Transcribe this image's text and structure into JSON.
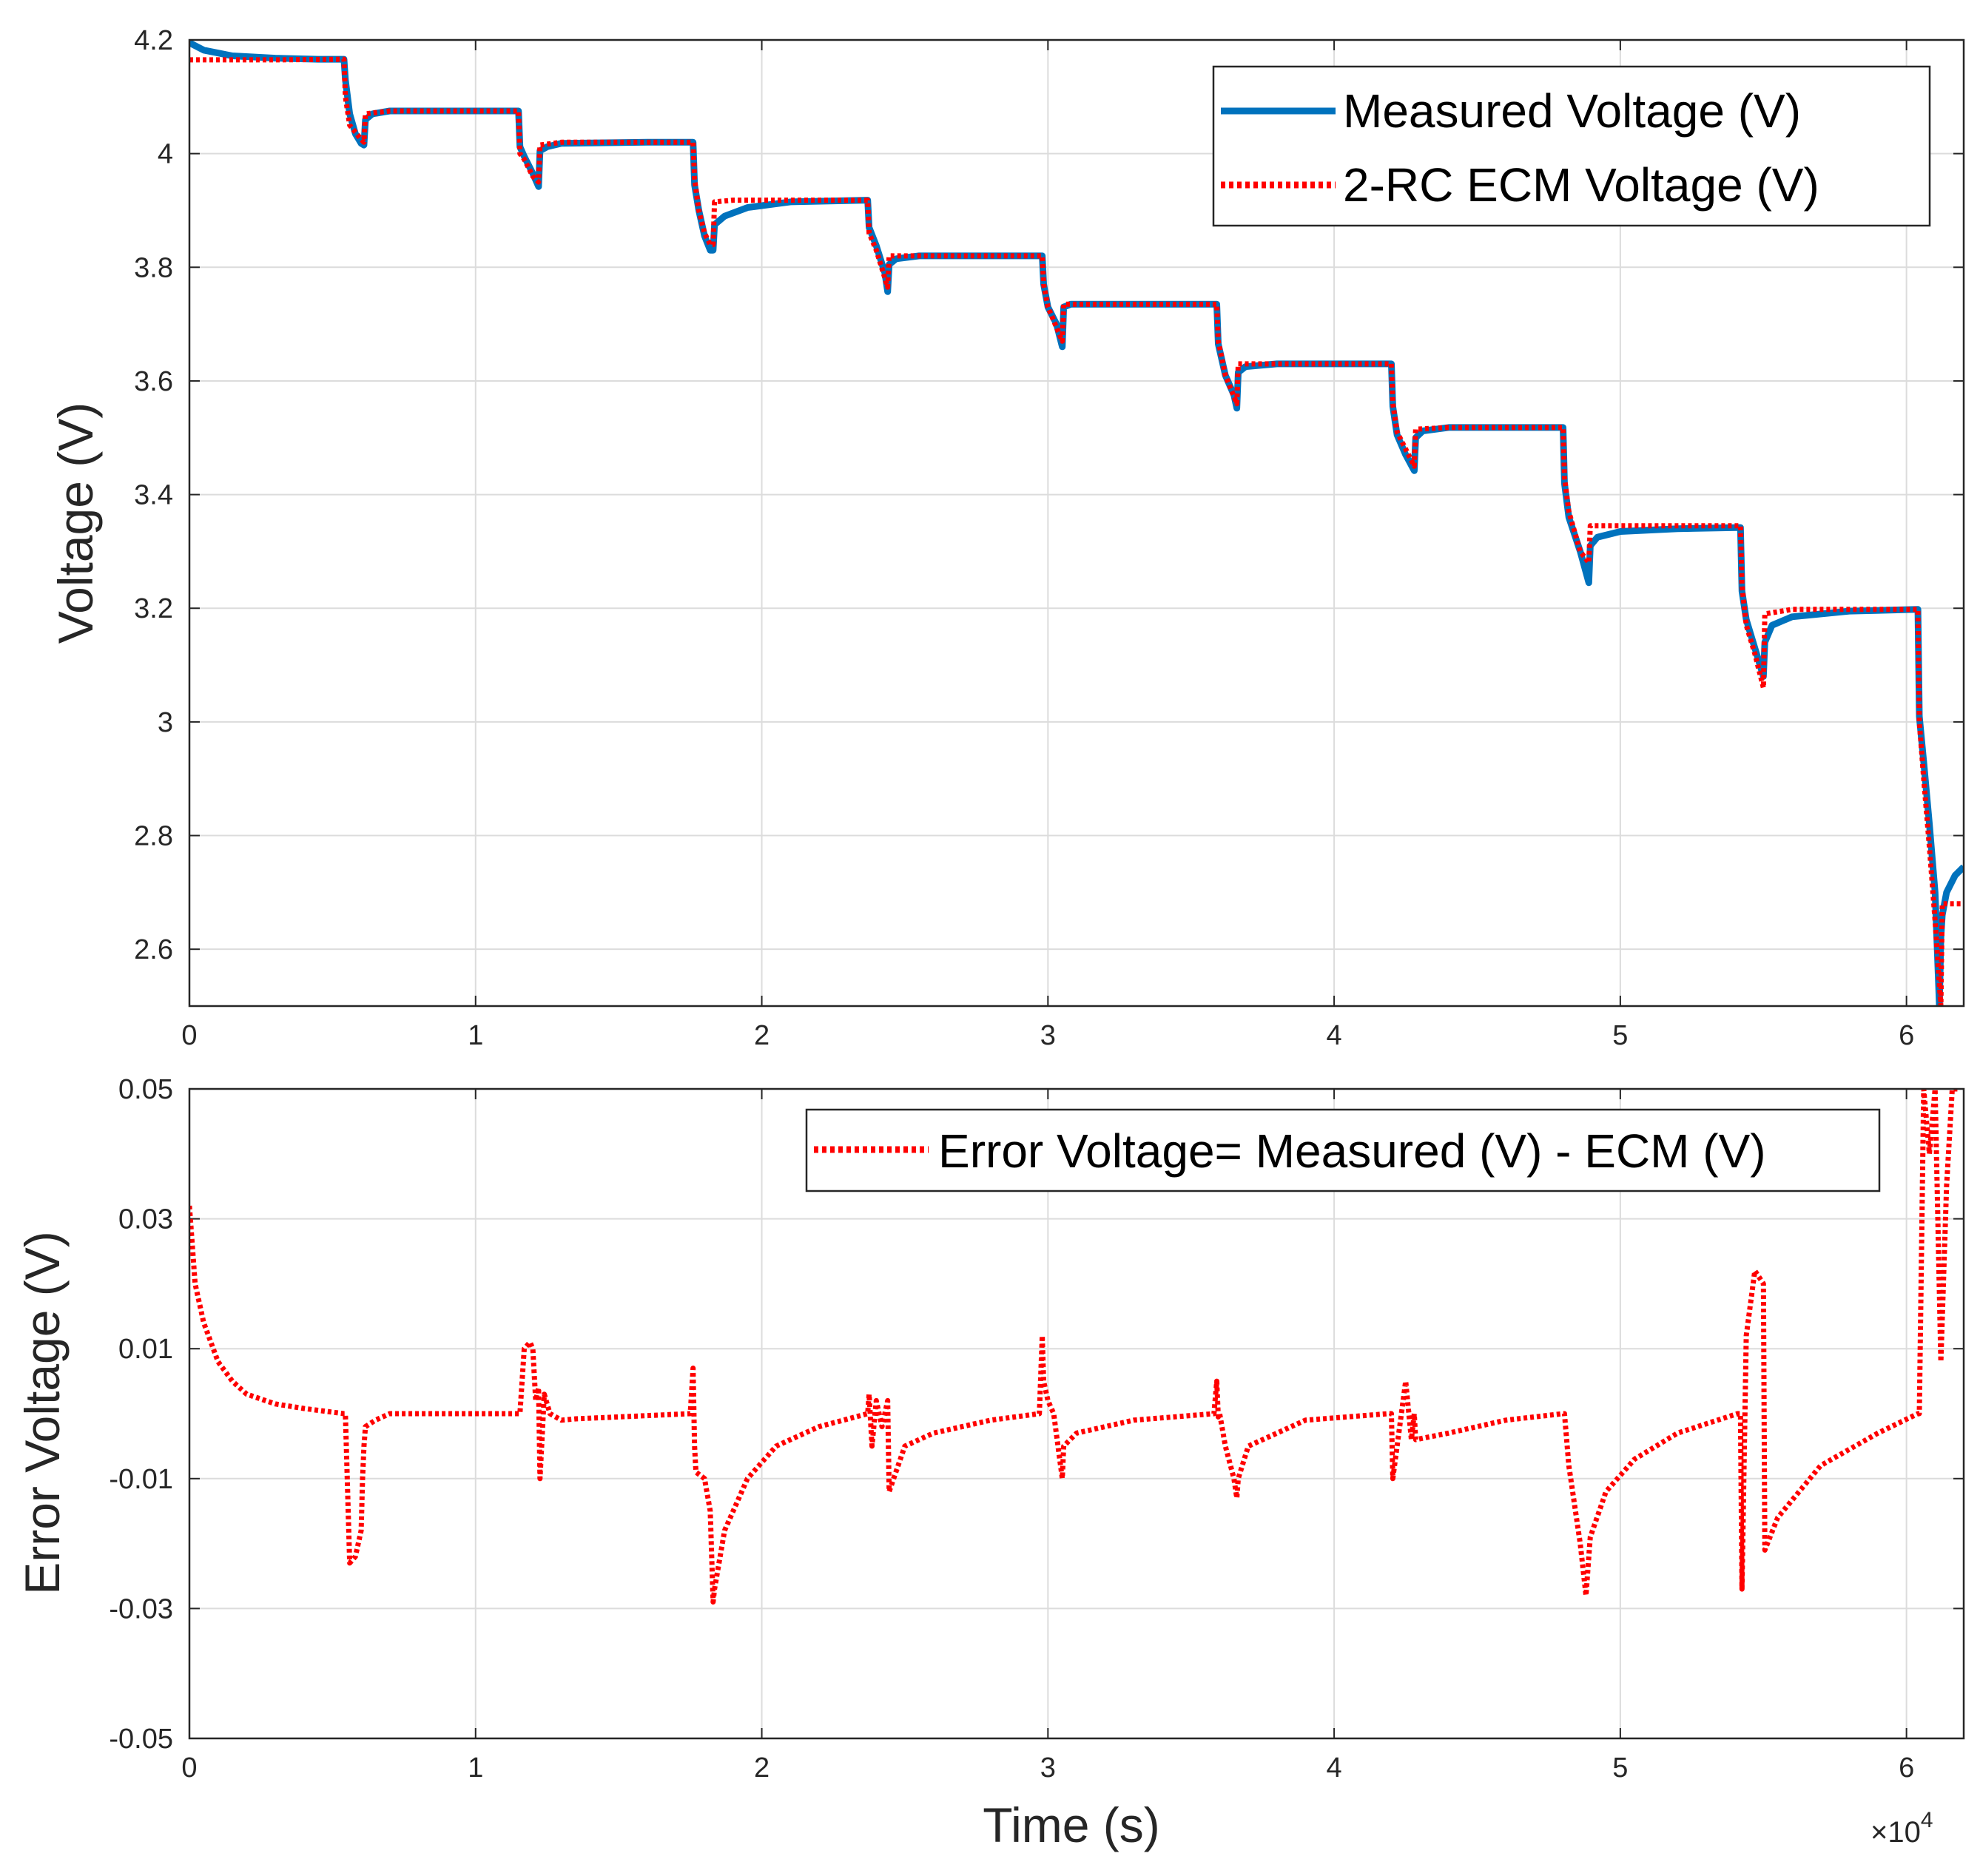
{
  "colors": {
    "measured": "#0072BD",
    "ecm": "#FF0000",
    "axis": "#262626",
    "grid": "#DCDCDC"
  },
  "chart_data": [
    {
      "type": "line",
      "panel": "top",
      "xlabel": "",
      "ylabel": "Voltage (V)",
      "xlim": [
        0,
        6.2
      ],
      "ylim": [
        2.5,
        4.2
      ],
      "x_unit_multiplier": "×10^4",
      "xticks": [
        0,
        1,
        2,
        3,
        4,
        5,
        6
      ],
      "xtick_labels": [
        "0",
        "1",
        "2",
        "3",
        "4",
        "5",
        "6"
      ],
      "yticks": [
        2.6,
        2.8,
        3.0,
        3.2,
        3.4,
        3.6,
        3.8,
        4.0,
        4.2
      ],
      "ytick_labels": [
        "2.6",
        "2.8",
        "3",
        "3.2",
        "3.4",
        "3.6",
        "3.8",
        "4",
        "4.2"
      ],
      "legend": [
        "Measured Voltage (V)",
        "2-RC ECM Voltage (V)"
      ],
      "legend_location": "top-right",
      "grid": true,
      "series": [
        {
          "name": "Measured Voltage (V)",
          "style": "solid",
          "x": [
            0,
            0.05,
            0.15,
            0.3,
            0.45,
            0.54,
            0.545,
            0.56,
            0.58,
            0.6,
            0.61,
            0.615,
            0.64,
            0.7,
            1.0,
            1.15,
            1.155,
            1.17,
            1.2,
            1.22,
            1.225,
            1.25,
            1.3,
            1.6,
            1.76,
            1.765,
            1.78,
            1.8,
            1.82,
            1.83,
            1.835,
            1.87,
            1.95,
            2.1,
            2.37,
            2.375,
            2.4,
            2.43,
            2.44,
            2.445,
            2.47,
            2.55,
            2.98,
            2.985,
            3.0,
            3.03,
            3.05,
            3.055,
            3.08,
            3.15,
            3.59,
            3.595,
            3.62,
            3.65,
            3.66,
            3.665,
            3.69,
            3.8,
            4.2,
            4.205,
            4.22,
            4.25,
            4.28,
            4.285,
            4.31,
            4.4,
            4.8,
            4.805,
            4.82,
            4.86,
            4.89,
            4.895,
            4.92,
            5.0,
            5.2,
            5.42,
            5.425,
            5.44,
            5.47,
            5.5,
            5.505,
            5.53,
            5.6,
            5.8,
            6.04,
            6.045,
            6.06,
            6.08,
            6.1,
            6.115,
            6.12,
            6.125,
            6.14,
            6.17,
            6.2
          ],
          "y": [
            4.195,
            4.182,
            4.172,
            4.168,
            4.166,
            4.166,
            4.13,
            4.07,
            4.035,
            4.018,
            4.015,
            4.06,
            4.07,
            4.075,
            4.075,
            4.075,
            4.012,
            3.995,
            3.965,
            3.942,
            4.005,
            4.012,
            4.018,
            4.02,
            4.02,
            3.945,
            3.9,
            3.855,
            3.83,
            3.83,
            3.875,
            3.89,
            3.905,
            3.915,
            3.918,
            3.87,
            3.838,
            3.79,
            3.757,
            3.805,
            3.815,
            3.82,
            3.82,
            3.77,
            3.73,
            3.7,
            3.66,
            3.73,
            3.735,
            3.735,
            3.735,
            3.665,
            3.61,
            3.575,
            3.552,
            3.615,
            3.625,
            3.63,
            3.63,
            3.555,
            3.505,
            3.47,
            3.442,
            3.5,
            3.512,
            3.518,
            3.518,
            3.42,
            3.36,
            3.3,
            3.245,
            3.31,
            3.325,
            3.335,
            3.34,
            3.342,
            3.23,
            3.18,
            3.13,
            3.08,
            3.14,
            3.17,
            3.185,
            3.195,
            3.198,
            3.01,
            2.93,
            2.82,
            2.7,
            2.5,
            2.62,
            2.66,
            2.7,
            2.73,
            2.745
          ]
        },
        {
          "name": "2-RC ECM Voltage (V)",
          "style": "dotted",
          "x": [
            0,
            0.3,
            0.54,
            0.545,
            0.56,
            0.6,
            0.61,
            0.615,
            0.7,
            1.15,
            1.155,
            1.17,
            1.2,
            1.22,
            1.225,
            1.3,
            1.76,
            1.765,
            1.78,
            1.8,
            1.82,
            1.83,
            1.835,
            1.9,
            2.37,
            2.375,
            2.4,
            2.44,
            2.445,
            2.55,
            2.98,
            2.985,
            3.0,
            3.05,
            3.055,
            3.15,
            3.59,
            3.595,
            3.62,
            3.66,
            3.665,
            3.8,
            4.2,
            4.205,
            4.22,
            4.28,
            4.285,
            4.4,
            4.8,
            4.805,
            4.82,
            4.86,
            4.89,
            4.895,
            5.0,
            5.42,
            5.425,
            5.44,
            5.47,
            5.5,
            5.505,
            5.6,
            6.04,
            6.045,
            6.06,
            6.08,
            6.1,
            6.12,
            6.125,
            6.2
          ],
          "y": [
            4.165,
            4.165,
            4.166,
            4.1,
            4.05,
            4.025,
            4.02,
            4.07,
            4.075,
            4.075,
            4.0,
            3.99,
            3.96,
            3.95,
            4.015,
            4.02,
            4.02,
            3.955,
            3.9,
            3.86,
            3.84,
            3.84,
            3.915,
            3.918,
            3.918,
            3.86,
            3.83,
            3.765,
            3.82,
            3.82,
            3.82,
            3.77,
            3.73,
            3.67,
            3.735,
            3.735,
            3.735,
            3.67,
            3.61,
            3.56,
            3.63,
            3.63,
            3.63,
            3.56,
            3.51,
            3.45,
            3.515,
            3.518,
            3.518,
            3.43,
            3.37,
            3.3,
            3.28,
            3.345,
            3.345,
            3.345,
            3.24,
            3.17,
            3.12,
            3.06,
            3.19,
            3.198,
            3.198,
            3.0,
            2.9,
            2.78,
            2.65,
            2.5,
            2.68,
            2.68
          ]
        }
      ]
    },
    {
      "type": "line",
      "panel": "bottom",
      "xlabel": "Time (s)",
      "ylabel": "Error Voltage (V)",
      "xlim": [
        0,
        6.2
      ],
      "ylim": [
        -0.05,
        0.05
      ],
      "x_unit_multiplier": "×10^4",
      "xticks": [
        0,
        1,
        2,
        3,
        4,
        5,
        6
      ],
      "xtick_labels": [
        "0",
        "1",
        "2",
        "3",
        "4",
        "5",
        "6"
      ],
      "yticks": [
        -0.05,
        -0.03,
        -0.01,
        0.01,
        0.03,
        0.05
      ],
      "ytick_labels": [
        "-0.05",
        "-0.03",
        "-0.01",
        "0.01",
        "0.03",
        "0.05"
      ],
      "legend": [
        "Error Voltage= Measured (V) - ECM (V)"
      ],
      "legend_location": "top-right",
      "grid": true,
      "series": [
        {
          "name": "Error Voltage= Measured (V) - ECM (V)",
          "style": "dotted",
          "x": [
            0,
            0.02,
            0.05,
            0.1,
            0.15,
            0.2,
            0.3,
            0.4,
            0.54,
            0.545,
            0.56,
            0.58,
            0.6,
            0.605,
            0.61,
            0.615,
            0.65,
            0.7,
            1.0,
            1.15,
            1.155,
            1.17,
            1.19,
            1.2,
            1.21,
            1.22,
            1.225,
            1.24,
            1.26,
            1.3,
            1.35,
            1.5,
            1.75,
            1.76,
            1.765,
            1.77,
            1.8,
            1.82,
            1.83,
            1.835,
            1.87,
            1.95,
            2.05,
            2.2,
            2.37,
            2.375,
            2.385,
            2.4,
            2.42,
            2.44,
            2.445,
            2.5,
            2.6,
            2.8,
            2.97,
            2.98,
            2.985,
            3.0,
            3.02,
            3.05,
            3.055,
            3.1,
            3.3,
            3.58,
            3.59,
            3.595,
            3.6,
            3.62,
            3.65,
            3.66,
            3.665,
            3.7,
            3.9,
            4.19,
            4.2,
            4.205,
            4.22,
            4.25,
            4.27,
            4.28,
            4.285,
            4.4,
            4.6,
            4.8,
            4.805,
            4.82,
            4.86,
            4.88,
            4.89,
            4.895,
            4.95,
            5.05,
            5.2,
            5.41,
            5.42,
            5.425,
            5.44,
            5.47,
            5.5,
            5.505,
            5.55,
            5.7,
            5.9,
            6.04,
            6.045,
            6.06,
            6.08,
            6.1,
            6.12,
            6.14,
            6.16,
            6.18
          ],
          "y": [
            0.032,
            0.02,
            0.014,
            0.008,
            0.005,
            0.003,
            0.0015,
            0.0008,
            0.0,
            0.0,
            -0.023,
            -0.022,
            -0.018,
            -0.01,
            -0.005,
            -0.002,
            -0.001,
            0.0,
            0.0,
            0.0,
            0.0,
            0.01,
            0.011,
            0.01,
            0.002,
            0.004,
            -0.01,
            0.003,
            0.0,
            -0.001,
            -0.0008,
            -0.0005,
            0.0,
            0.007,
            -0.005,
            -0.009,
            -0.01,
            -0.015,
            -0.029,
            -0.027,
            -0.018,
            -0.01,
            -0.005,
            -0.002,
            0.0,
            0.003,
            -0.005,
            0.002,
            -0.002,
            0.002,
            -0.012,
            -0.005,
            -0.003,
            -0.001,
            0.0,
            0.012,
            0.005,
            0.002,
            0.0,
            -0.01,
            -0.005,
            -0.003,
            -0.001,
            0.0,
            0.005,
            -0.0005,
            0.0,
            -0.005,
            -0.01,
            -0.013,
            -0.01,
            -0.005,
            -0.001,
            0.0,
            0.0,
            -0.01,
            -0.005,
            0.005,
            -0.004,
            0.0,
            -0.004,
            -0.003,
            -0.001,
            0.0,
            0.0,
            -0.008,
            -0.02,
            -0.028,
            -0.022,
            -0.019,
            -0.012,
            -0.007,
            -0.003,
            0.0,
            0.0,
            -0.027,
            0.012,
            0.022,
            0.02,
            -0.021,
            -0.016,
            -0.008,
            -0.003,
            0.0,
            0.0,
            0.05,
            0.04,
            0.05,
            0.008,
            0.035,
            0.05,
            0.05
          ]
        }
      ]
    }
  ],
  "exponent_base": "×10",
  "exponent_power": "4"
}
